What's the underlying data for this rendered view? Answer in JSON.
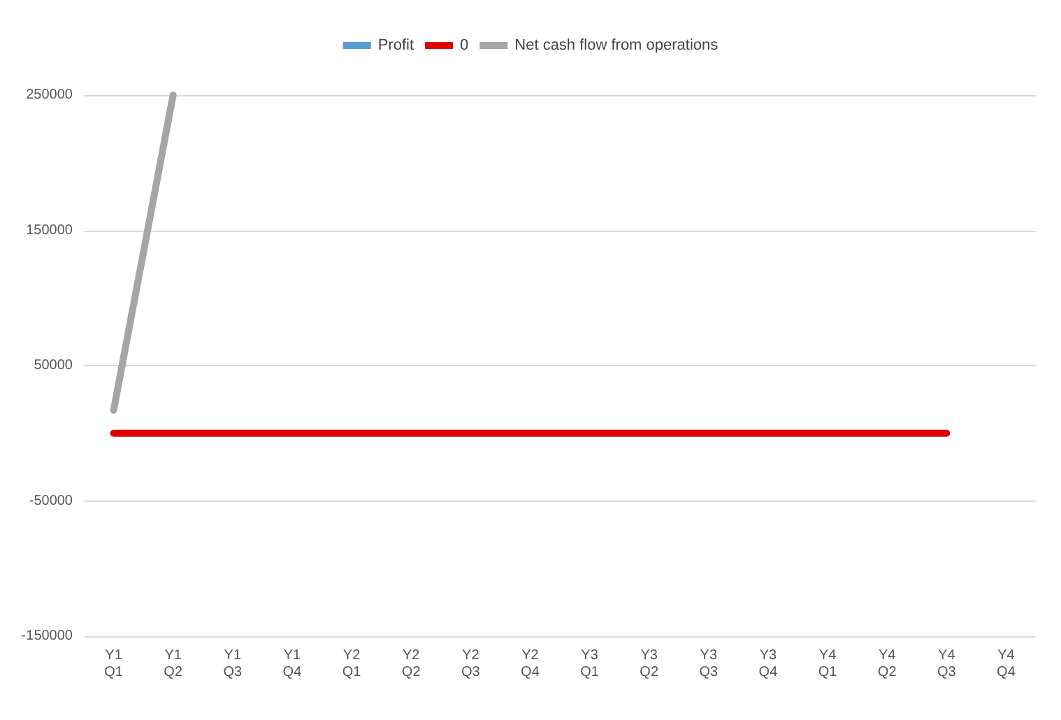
{
  "chart_data": {
    "type": "line",
    "categories": [
      "Y1\nQ1",
      "Y1\nQ2",
      "Y1\nQ3",
      "Y1\nQ4",
      "Y2\nQ1",
      "Y2\nQ2",
      "Y2\nQ3",
      "Y2\nQ4",
      "Y3\nQ1",
      "Y3\nQ2",
      "Y3\nQ3",
      "Y3\nQ4",
      "Y4\nQ1",
      "Y4\nQ2",
      "Y4\nQ3",
      "Y4\nQ4"
    ],
    "series": [
      {
        "name": "Profit",
        "color": "#5b9bd5",
        "values": [
          null,
          null,
          null,
          null,
          null,
          null,
          null,
          null,
          null,
          null,
          null,
          null,
          null,
          null,
          null,
          null
        ]
      },
      {
        "name": "0",
        "color": "#e00000",
        "values": [
          0,
          0,
          0,
          0,
          0,
          0,
          0,
          0,
          0,
          0,
          0,
          0,
          0,
          0,
          0,
          null
        ]
      },
      {
        "name": "Net cash flow from operations",
        "color": "#a5a5a5",
        "values": [
          17000,
          250000,
          null,
          null,
          null,
          null,
          null,
          null,
          null,
          null,
          null,
          null,
          null,
          null,
          null,
          null
        ]
      }
    ],
    "ylim": [
      -150000,
      250000
    ],
    "yticks": [
      -150000,
      -50000,
      50000,
      150000,
      250000
    ],
    "grid": "y",
    "legend": "top",
    "marker": "none",
    "line_style": "solid"
  }
}
